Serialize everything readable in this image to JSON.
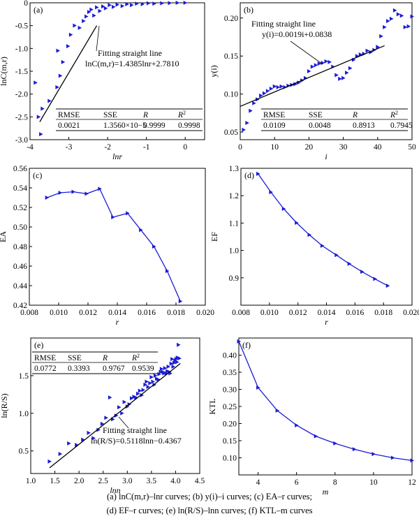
{
  "figure": {
    "caption_line1": "(a) lnC(m,r)–lnr curves; (b) y(i)–i curves; (c) EA–r curves;",
    "caption_line2": "(d) EF–r curves; (e) ln(R/S)–lnn curves; (f) KTL–m curves"
  },
  "colors": {
    "series": "#1b1bd6",
    "fit": "#000000",
    "axis": "#000000"
  },
  "chart_data": [
    {
      "id": "a",
      "panel_label": "(a)",
      "type": "scatter",
      "xlabel": "lnr",
      "ylabel": "lnC(m,r)",
      "xlim": [
        -4,
        0.5
      ],
      "ylim": [
        -3.0,
        0
      ],
      "xticks": [
        -4,
        -3,
        -2,
        -1,
        0
      ],
      "yticks": [
        -3.0,
        -2.5,
        -2.0,
        -1.5,
        -1.0,
        -0.5,
        0
      ],
      "points": [
        [
          -3.72,
          -2.88
        ],
        [
          -3.78,
          -2.5
        ],
        [
          -3.86,
          -1.75
        ],
        [
          -3.68,
          -2.32
        ],
        [
          -3.5,
          -2.15
        ],
        [
          -3.3,
          -1.85
        ],
        [
          -3.22,
          -1.6
        ],
        [
          -3.15,
          -1.3
        ],
        [
          -3.28,
          -1.05
        ],
        [
          -3.02,
          -0.95
        ],
        [
          -2.95,
          -0.7
        ],
        [
          -2.85,
          -0.5
        ],
        [
          -2.72,
          -0.55
        ],
        [
          -2.62,
          -0.4
        ],
        [
          -2.55,
          -0.3
        ],
        [
          -2.48,
          -0.2
        ],
        [
          -2.42,
          -0.15
        ],
        [
          -2.35,
          -0.28
        ],
        [
          -2.28,
          -0.1
        ],
        [
          -2.2,
          -0.18
        ],
        [
          -2.12,
          -0.08
        ],
        [
          -2.05,
          -0.12
        ],
        [
          -1.95,
          -0.05
        ],
        [
          -1.85,
          -0.09
        ],
        [
          -1.75,
          -0.04
        ],
        [
          -1.62,
          -0.07
        ],
        [
          -1.5,
          -0.03
        ],
        [
          -1.38,
          -0.05
        ],
        [
          -1.25,
          -0.02
        ],
        [
          -1.1,
          -0.03
        ],
        [
          -0.95,
          -0.01
        ],
        [
          -0.8,
          -0.02
        ],
        [
          -0.6,
          -0.01
        ],
        [
          -0.4,
          -0.005
        ],
        [
          -0.2,
          0
        ],
        [
          0,
          0
        ]
      ],
      "fit_line": {
        "x": [
          -3.75,
          -2.28
        ],
        "y": [
          -2.61,
          -0.5
        ]
      },
      "annotation": [
        "Fitting straight line",
        "lnC(m,r)=1.4385lnr+2.7810"
      ],
      "stats_table": {
        "headers": [
          "RMSE",
          "SSE",
          "R",
          "R2"
        ],
        "values": [
          "0.0021",
          "1.3560×10−5",
          "0.9999",
          "0.9998"
        ]
      }
    },
    {
      "id": "b",
      "panel_label": "(b)",
      "type": "scatter",
      "xlabel": "i",
      "ylabel": "y(i)",
      "xlim": [
        0,
        50
      ],
      "ylim": [
        0.04,
        0.22
      ],
      "xticks": [
        0,
        10,
        20,
        30,
        40,
        50
      ],
      "yticks": [
        0.05,
        0.1,
        0.15,
        0.2
      ],
      "x": [
        1,
        2,
        3,
        4,
        5,
        6,
        7,
        8,
        9,
        10,
        11,
        12,
        13,
        14,
        15,
        16,
        17,
        18,
        19,
        20,
        21,
        22,
        23,
        24,
        25,
        26,
        27,
        28,
        29,
        30,
        31,
        32,
        33,
        34,
        35,
        36,
        37,
        38,
        39,
        40,
        41,
        42,
        43,
        44,
        45,
        46,
        47,
        48,
        49,
        50
      ],
      "y": [
        0.053,
        0.062,
        0.078,
        0.088,
        0.093,
        0.098,
        0.101,
        0.104,
        0.107,
        0.11,
        0.109,
        0.11,
        0.109,
        0.111,
        0.112,
        0.113,
        0.115,
        0.118,
        0.121,
        0.13,
        0.136,
        0.138,
        0.14,
        0.141,
        0.143,
        0.142,
        0.136,
        0.125,
        0.12,
        0.121,
        0.128,
        0.134,
        0.145,
        0.15,
        0.152,
        0.153,
        0.157,
        0.155,
        0.158,
        0.162,
        0.176,
        0.188,
        0.196,
        0.199,
        0.21,
        0.205,
        0.203,
        0.188,
        0.189,
        0.202
      ],
      "fit_line": {
        "x": [
          0,
          42
        ],
        "y": [
          0.0838,
          0.1636
        ]
      },
      "annotation": [
        "Fitting straight line",
        "y(i)=0.0019i+0.0838"
      ],
      "stats_table": {
        "headers": [
          "RMSE",
          "SSE",
          "R",
          "R2"
        ],
        "values": [
          "0.0109",
          "0.0048",
          "0.8913",
          "0.7945"
        ]
      }
    },
    {
      "id": "c",
      "panel_label": "(c)",
      "type": "line",
      "xlabel": "r",
      "ylabel": "EA",
      "xlim": [
        0.008,
        0.02
      ],
      "ylim": [
        0.42,
        0.56
      ],
      "xticks": [
        0.008,
        0.01,
        0.012,
        0.014,
        0.016,
        0.018,
        0.02
      ],
      "yticks": [
        0.42,
        0.44,
        0.46,
        0.48,
        0.5,
        0.52,
        0.54,
        0.56
      ],
      "x": [
        0.0092,
        0.0101,
        0.011,
        0.0119,
        0.0128,
        0.0137,
        0.0147,
        0.0156,
        0.0165,
        0.0174,
        0.0183
      ],
      "y": [
        0.53,
        0.535,
        0.536,
        0.534,
        0.539,
        0.51,
        0.514,
        0.497,
        0.48,
        0.455,
        0.424
      ]
    },
    {
      "id": "d",
      "panel_label": "(d)",
      "type": "line",
      "xlabel": "r",
      "ylabel": "EF",
      "xlim": [
        0.008,
        0.02
      ],
      "ylim": [
        0.8,
        1.3
      ],
      "xticks": [
        0.008,
        0.01,
        0.012,
        0.014,
        0.016,
        0.018,
        0.02
      ],
      "yticks": [
        0.9,
        1.0,
        1.1,
        1.2,
        1.3
      ],
      "x": [
        0.0092,
        0.0101,
        0.011,
        0.0119,
        0.0128,
        0.0137,
        0.0147,
        0.0156,
        0.0165,
        0.0174,
        0.0183
      ],
      "y": [
        1.28,
        1.213,
        1.152,
        1.101,
        1.057,
        1.017,
        0.983,
        0.951,
        0.922,
        0.896,
        0.871
      ]
    },
    {
      "id": "e",
      "panel_label": "(e)",
      "type": "scatter",
      "xlabel": "lnn",
      "ylabel": "ln(R/S)",
      "xlim": [
        1.0,
        4.5
      ],
      "ylim": [
        0.2,
        2.0
      ],
      "xticks": [
        1.0,
        1.5,
        2.0,
        2.5,
        3.0,
        3.5,
        4.0,
        4.5
      ],
      "yticks": [
        0.5,
        1.0,
        1.5
      ],
      "points": [
        [
          1.39,
          0.36
        ],
        [
          1.61,
          0.46
        ],
        [
          1.79,
          0.6
        ],
        [
          1.95,
          0.58
        ],
        [
          2.08,
          0.65
        ],
        [
          2.2,
          0.74
        ],
        [
          2.3,
          0.67
        ],
        [
          2.4,
          0.78
        ],
        [
          2.48,
          0.86
        ],
        [
          2.56,
          0.94
        ],
        [
          2.64,
          1.21
        ],
        [
          2.7,
          0.92
        ],
        [
          2.77,
          0.97
        ],
        [
          2.83,
          1.08
        ],
        [
          2.89,
          1.0
        ],
        [
          2.94,
          1.15
        ],
        [
          3.0,
          1.09
        ],
        [
          3.04,
          1.12
        ],
        [
          3.09,
          1.2
        ],
        [
          3.14,
          1.22
        ],
        [
          3.18,
          1.21
        ],
        [
          3.22,
          1.26
        ],
        [
          3.26,
          1.3
        ],
        [
          3.3,
          1.24
        ],
        [
          3.33,
          1.31
        ],
        [
          3.37,
          1.38
        ],
        [
          3.4,
          1.42
        ],
        [
          3.43,
          1.35
        ],
        [
          3.47,
          1.4
        ],
        [
          3.5,
          1.48
        ],
        [
          3.53,
          1.42
        ],
        [
          3.56,
          1.38
        ],
        [
          3.58,
          1.5
        ],
        [
          3.61,
          1.46
        ],
        [
          3.64,
          1.45
        ],
        [
          3.66,
          1.52
        ],
        [
          3.69,
          1.55
        ],
        [
          3.71,
          1.59
        ],
        [
          3.74,
          1.55
        ],
        [
          3.76,
          1.53
        ],
        [
          3.78,
          1.6
        ],
        [
          3.81,
          1.53
        ],
        [
          3.83,
          1.56
        ],
        [
          3.85,
          1.62
        ],
        [
          3.87,
          1.55
        ],
        [
          3.89,
          1.53
        ],
        [
          3.91,
          1.66
        ],
        [
          3.93,
          1.72
        ],
        [
          3.95,
          1.62
        ],
        [
          3.97,
          1.67
        ],
        [
          3.99,
          1.7
        ],
        [
          4.01,
          1.72
        ],
        [
          4.03,
          1.68
        ],
        [
          4.04,
          1.74
        ],
        [
          4.06,
          1.91
        ],
        [
          4.08,
          1.73
        ]
      ],
      "fit_line": {
        "x": [
          1.39,
          4.1
        ],
        "y": [
          0.275,
          1.662
        ]
      },
      "annotation": [
        "Fitting straight line",
        "ln(R/S)=0.5118lnn−0.4367"
      ],
      "stats_table": {
        "headers": [
          "RMSE",
          "SSE",
          "R",
          "R2"
        ],
        "values": [
          "0.0772",
          "0.3393",
          "0.9767",
          "0.9539"
        ]
      }
    },
    {
      "id": "f",
      "panel_label": "(f)",
      "type": "line",
      "xlabel": "m",
      "ylabel": "KTL",
      "xlim": [
        3,
        12
      ],
      "ylim": [
        0.05,
        0.45
      ],
      "xticks": [
        4,
        6,
        8,
        10,
        12
      ],
      "yticks": [
        0.1,
        0.15,
        0.2,
        0.25,
        0.3,
        0.35,
        0.4
      ],
      "x": [
        3,
        4,
        5,
        6,
        7,
        8,
        9,
        10,
        11,
        12
      ],
      "y": [
        0.44,
        0.305,
        0.238,
        0.195,
        0.163,
        0.142,
        0.125,
        0.111,
        0.1,
        0.092
      ]
    }
  ]
}
